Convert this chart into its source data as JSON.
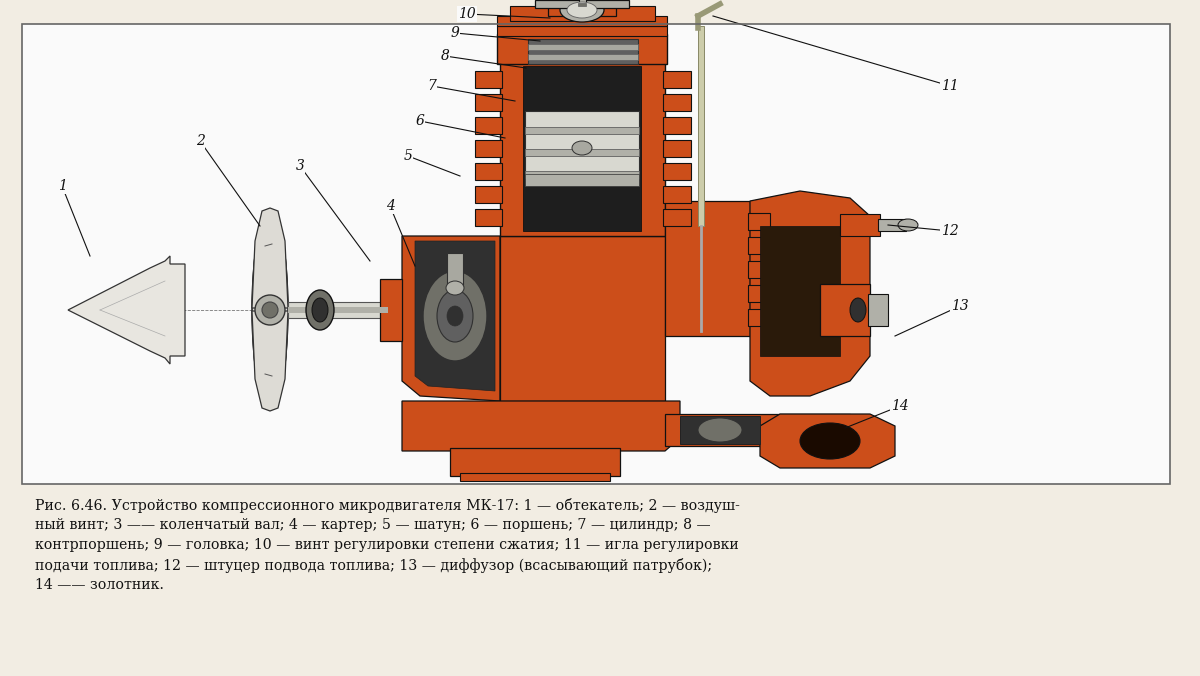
{
  "bg": "#f2ede3",
  "white": "#ffffff",
  "engine_orange": "#cc4e1a",
  "engine_dark": "#7a2800",
  "engine_light": "#e06030",
  "metal_light": "#d8d8d0",
  "metal_mid": "#b0b0a8",
  "metal_dark": "#707068",
  "black": "#111111",
  "dark_gray": "#303030",
  "mid_gray": "#606060",
  "light_gray": "#a8a8a0",
  "border_color": "#555555",
  "fig_width": 12.0,
  "fig_height": 6.76,
  "dpi": 100,
  "caption_lines": [
    "Рис. 6.46. Устройство компрессионного микродвигателя МК-17: 1 — обтекатель; 2 — воздуш-",
    "ный винт; 3 —— коленчатый вал; 4 — картер; 5 — шатун; 6 — поршень; 7 — цилиндр; 8 —",
    "контрпоршень; 9 — головка; 10 — винт регулировки степени сжатия; 11 — игла регулировки",
    "подачи топлива; 12 — штуцер подвода топлива; 13 — диффузор (всасывающий патрубок);",
    "14 —— золотник."
  ]
}
